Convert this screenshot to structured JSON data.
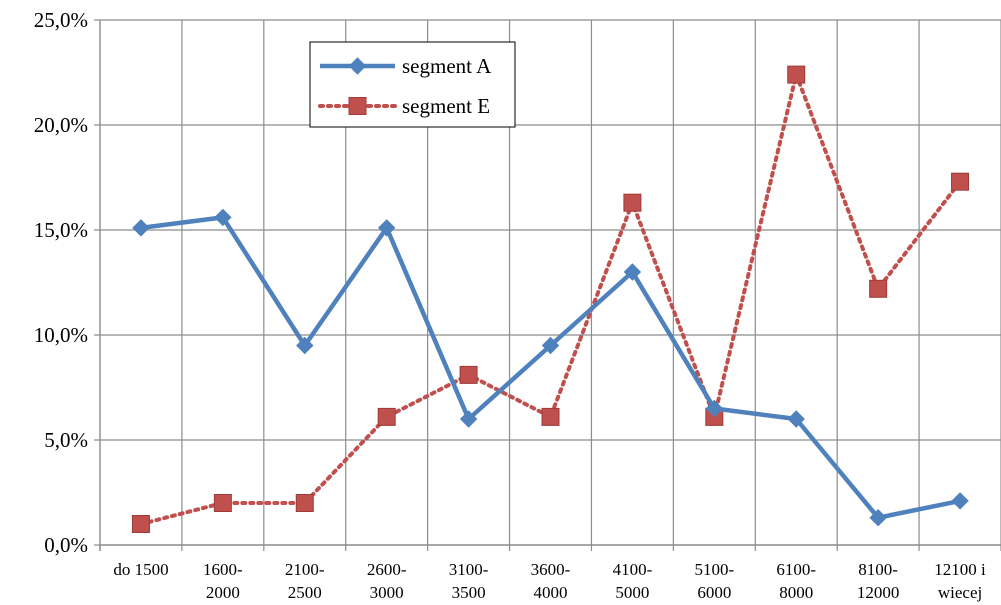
{
  "chart_data": {
    "type": "line",
    "title": "",
    "xlabel": "",
    "ylabel": "",
    "categories": [
      [
        "do 1500"
      ],
      [
        "1600-",
        "2000"
      ],
      [
        "2100-",
        "2500"
      ],
      [
        "2600-",
        "3000"
      ],
      [
        "3100-",
        "3500"
      ],
      [
        "3600-",
        "4000"
      ],
      [
        "4100-",
        "5000"
      ],
      [
        "5100-",
        "6000"
      ],
      [
        "6100-",
        "8000"
      ],
      [
        "8100-",
        "12000"
      ],
      [
        "12100 i",
        "wiecej"
      ]
    ],
    "ylim": [
      0,
      25
    ],
    "ytick_values": [
      0,
      5,
      10,
      15,
      20,
      25
    ],
    "ytick_labels": [
      "0,0%",
      "5,0%",
      "10,0%",
      "15,0%",
      "20,0%",
      "25,0%"
    ],
    "grid": true,
    "legend_position": "top-left",
    "series": [
      {
        "name": "segment A",
        "values": [
          15.1,
          15.6,
          9.5,
          15.1,
          6.0,
          9.5,
          13.0,
          6.5,
          6.0,
          1.3,
          2.1
        ],
        "color": "#4F81BD",
        "line_style": "solid",
        "marker": "diamond"
      },
      {
        "name": "segment E",
        "values": [
          1.0,
          2.0,
          2.0,
          6.1,
          8.1,
          6.1,
          16.3,
          6.1,
          22.4,
          12.2,
          17.3
        ],
        "color": "#C0504D",
        "line_style": "dotted",
        "marker": "square"
      }
    ]
  }
}
